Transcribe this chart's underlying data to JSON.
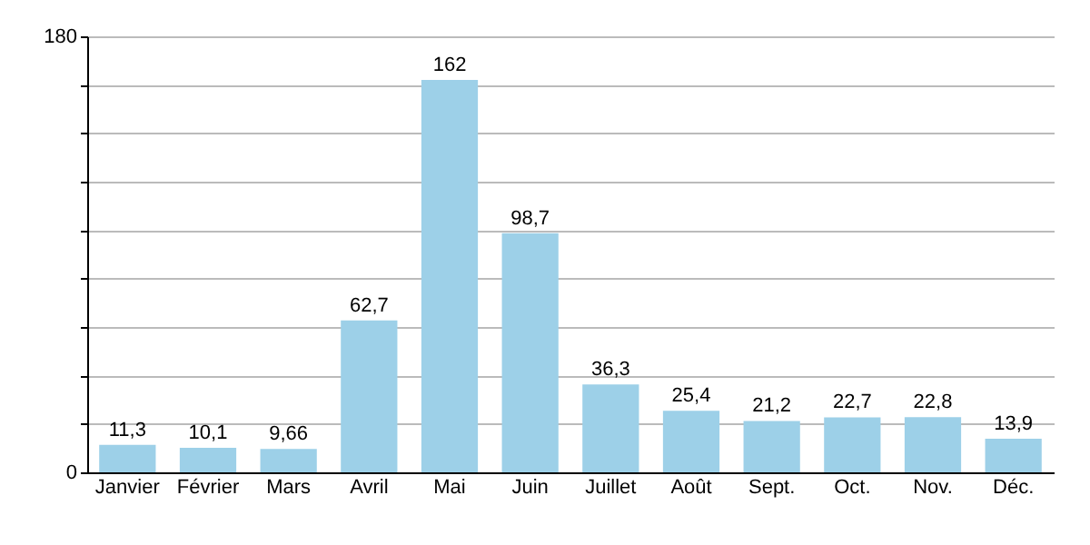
{
  "chart_data": {
    "type": "bar",
    "categories": [
      "Janvier",
      "Février",
      "Mars",
      "Avril",
      "Mai",
      "Juin",
      "Juillet",
      "Août",
      "Sept.",
      "Oct.",
      "Nov.",
      "Déc."
    ],
    "values": [
      11.3,
      10.1,
      9.66,
      62.7,
      162,
      98.7,
      36.3,
      25.4,
      21.2,
      22.7,
      22.8,
      13.9
    ],
    "value_labels": [
      "11,3",
      "10,1",
      "9,66",
      "62,7",
      "162",
      "98,7",
      "36,3",
      "25,4",
      "21,2",
      "22,7",
      "22,8",
      "13,9"
    ],
    "color": "#9dd0e8",
    "ylim": [
      0,
      180
    ],
    "yticks": [
      0,
      {
        "value": 20,
        "label": null
      },
      {
        "value": 40,
        "label": null
      },
      {
        "value": 60,
        "label": null
      },
      {
        "value": 80,
        "label": null
      },
      {
        "value": 100,
        "label": null
      },
      {
        "value": 120,
        "label": null
      },
      {
        "value": 140,
        "label": null
      },
      {
        "value": 160,
        "label": null
      },
      180
    ],
    "grid": "y"
  }
}
